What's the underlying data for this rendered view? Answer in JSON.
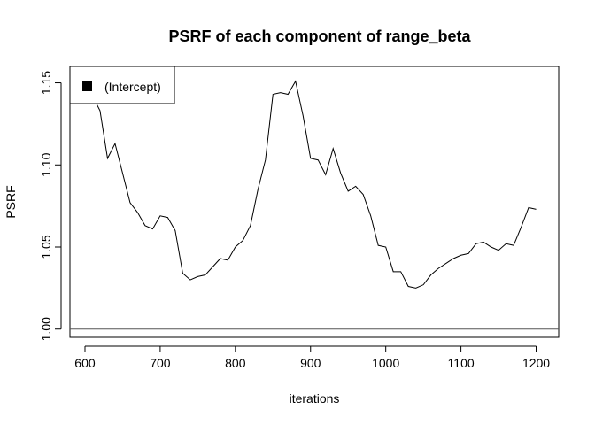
{
  "chart_data": {
    "type": "line",
    "title": "PSRF of each component of range_beta",
    "xlabel": "iterations",
    "ylabel": "PSRF",
    "xlim": [
      580,
      1230
    ],
    "ylim": [
      0.995,
      1.16
    ],
    "xticks": [
      600,
      700,
      800,
      900,
      1000,
      1100,
      1200
    ],
    "yticks": [
      1.0,
      1.05,
      1.1,
      1.15
    ],
    "ytick_labels": [
      "1.00",
      "1.05",
      "1.10",
      "1.15"
    ],
    "reference_line": {
      "y": 1.0,
      "color": "#555555"
    },
    "legend": {
      "position": "top-left",
      "entries": [
        "(Intercept)"
      ]
    },
    "grid": false,
    "series": [
      {
        "name": "(Intercept)",
        "color": "#000000",
        "x": [
          600,
          610,
          620,
          630,
          640,
          650,
          660,
          670,
          680,
          690,
          700,
          710,
          720,
          730,
          740,
          750,
          760,
          770,
          780,
          790,
          800,
          810,
          820,
          830,
          840,
          850,
          860,
          870,
          880,
          890,
          900,
          910,
          920,
          930,
          940,
          950,
          960,
          970,
          980,
          990,
          1000,
          1010,
          1020,
          1030,
          1040,
          1050,
          1060,
          1070,
          1080,
          1090,
          1100,
          1110,
          1120,
          1130,
          1140,
          1150,
          1160,
          1170,
          1180,
          1190,
          1200
        ],
        "values": [
          1.15,
          1.142,
          1.133,
          1.104,
          1.113,
          1.095,
          1.077,
          1.071,
          1.063,
          1.061,
          1.069,
          1.068,
          1.06,
          1.034,
          1.03,
          1.032,
          1.033,
          1.038,
          1.043,
          1.042,
          1.05,
          1.054,
          1.063,
          1.085,
          1.103,
          1.143,
          1.144,
          1.143,
          1.151,
          1.13,
          1.104,
          1.103,
          1.094,
          1.11,
          1.095,
          1.084,
          1.087,
          1.082,
          1.069,
          1.051,
          1.05,
          1.035,
          1.035,
          1.026,
          1.025,
          1.027,
          1.033,
          1.037,
          1.04,
          1.043,
          1.045,
          1.046,
          1.052,
          1.053,
          1.05,
          1.048,
          1.052,
          1.051,
          1.062,
          1.074,
          1.073
        ]
      }
    ]
  }
}
